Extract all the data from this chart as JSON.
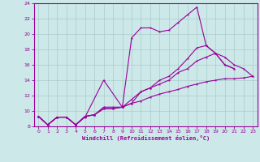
{
  "xlabel": "Windchill (Refroidissement éolien,°C)",
  "bg_color": "#cce8e8",
  "line_color": "#990099",
  "grid_color": "#aacccc",
  "xlim": [
    -0.5,
    23.5
  ],
  "ylim": [
    8,
    24
  ],
  "yticks": [
    8,
    10,
    12,
    14,
    16,
    18,
    20,
    22,
    24
  ],
  "xticks": [
    0,
    1,
    2,
    3,
    4,
    5,
    6,
    7,
    8,
    9,
    10,
    11,
    12,
    13,
    14,
    15,
    16,
    17,
    18,
    19,
    20,
    21,
    22,
    23
  ],
  "lines": [
    {
      "x": [
        0,
        1,
        2,
        3,
        4,
        5,
        7,
        9,
        10,
        11,
        12,
        13,
        14,
        15,
        16,
        17,
        18,
        19,
        20,
        21
      ],
      "y": [
        9.3,
        8.2,
        9.2,
        9.2,
        8.2,
        9.2,
        14.0,
        10.5,
        19.5,
        20.8,
        20.8,
        20.3,
        20.5,
        21.5,
        22.5,
        23.5,
        18.5,
        17.5,
        16.0,
        15.5
      ]
    },
    {
      "x": [
        0,
        1,
        2,
        3,
        4,
        5,
        6,
        7,
        8,
        9,
        10,
        11,
        12,
        13,
        14,
        15,
        16,
        17,
        18,
        19,
        20,
        21,
        22,
        23
      ],
      "y": [
        9.3,
        8.2,
        9.2,
        9.2,
        8.2,
        9.3,
        9.5,
        10.5,
        10.5,
        10.5,
        11.5,
        12.5,
        13.0,
        13.5,
        14.0,
        15.0,
        15.5,
        16.5,
        17.0,
        17.5,
        17.0,
        16.0,
        15.5,
        14.5
      ]
    },
    {
      "x": [
        0,
        1,
        2,
        3,
        4,
        5,
        6,
        7,
        8,
        9,
        10,
        11,
        12,
        13,
        14,
        15,
        16,
        17,
        18,
        19,
        20,
        21,
        22,
        23
      ],
      "y": [
        9.3,
        8.2,
        9.2,
        9.2,
        8.2,
        9.3,
        9.5,
        10.3,
        10.3,
        10.5,
        11.0,
        11.3,
        11.8,
        12.2,
        12.5,
        12.8,
        13.2,
        13.5,
        13.8,
        14.0,
        14.2,
        14.2,
        14.3,
        14.5
      ]
    },
    {
      "x": [
        0,
        1,
        2,
        3,
        4,
        5,
        6,
        7,
        8,
        9,
        10,
        11,
        12,
        13,
        14,
        15,
        16,
        17,
        18,
        19,
        20,
        21
      ],
      "y": [
        9.3,
        8.2,
        9.2,
        9.2,
        8.2,
        9.3,
        9.5,
        10.3,
        10.3,
        10.5,
        11.0,
        12.5,
        13.0,
        14.0,
        14.5,
        15.5,
        16.8,
        18.2,
        18.5,
        17.5,
        16.0,
        15.5
      ]
    }
  ]
}
